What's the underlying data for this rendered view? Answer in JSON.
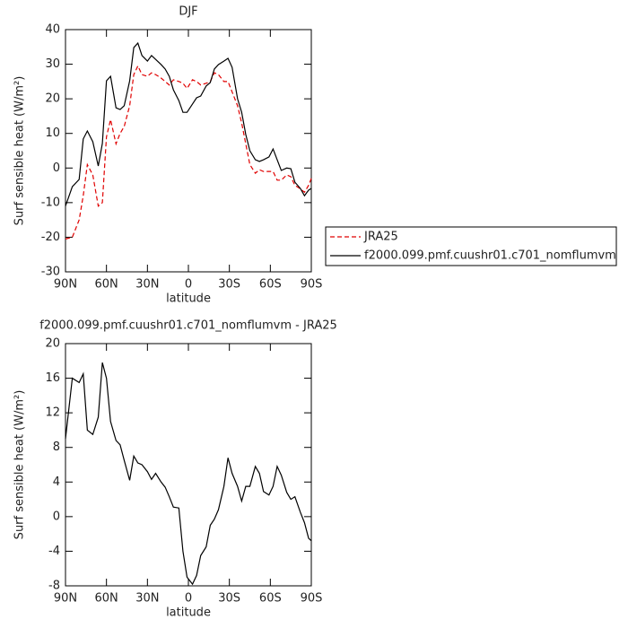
{
  "chart_data": [
    {
      "type": "line",
      "title": "DJF",
      "xlabel": "latitude",
      "ylabel": "Surf sensible heat (W/m²)",
      "x": [
        90,
        85,
        80,
        77,
        74,
        70,
        66,
        63,
        60,
        57,
        53,
        50,
        47,
        43,
        40,
        37,
        34,
        30,
        27,
        24,
        20,
        17,
        14,
        11,
        7,
        4,
        1,
        -3,
        -6,
        -9,
        -13,
        -16,
        -19,
        -22,
        -26,
        -29,
        -32,
        -36,
        -39,
        -42,
        -45,
        -49,
        -52,
        -55,
        -59,
        -62,
        -65,
        -68,
        -72,
        -75,
        -78,
        -82,
        -85,
        -88,
        -90
      ],
      "series": [
        {
          "name": "JRA25",
          "color": "#e00000",
          "dash": true,
          "values": [
            -20.5,
            -20,
            -15,
            -8,
            1,
            -2,
            -11,
            -10,
            9,
            14,
            7,
            10,
            12,
            18,
            27,
            29.5,
            27,
            26.5,
            27.5,
            27,
            26,
            25,
            24,
            25.5,
            25,
            24.5,
            23,
            25.5,
            25,
            24,
            24.5,
            25,
            27.5,
            27,
            25,
            25,
            22,
            18,
            13,
            7,
            1,
            -1.5,
            -0.5,
            -1,
            -1,
            -1,
            -3.5,
            -3.5,
            -2,
            -2.5,
            -5,
            -6,
            -7,
            -5,
            -3
          ]
        },
        {
          "name": "f2000.099.pmf.cuushr01.c701_nomflumvm",
          "color": "#000000",
          "dash": false,
          "values": [
            -11,
            -5.4,
            -3.3,
            8.4,
            10.7,
            7.6,
            0.6,
            7.1,
            25.2,
            26.5,
            17.4,
            16.9,
            18,
            25.2,
            34.8,
            36.1,
            32.5,
            30.9,
            32.5,
            31.4,
            29.9,
            28.6,
            26.5,
            22.6,
            19.5,
            16.1,
            16.1,
            18.5,
            20.3,
            20.8,
            23.7,
            24.7,
            28.6,
            29.9,
            30.9,
            31.7,
            29.1,
            20,
            16.1,
            9.7,
            5,
            2.4,
            1.9,
            2.4,
            3.2,
            5.5,
            2.4,
            -0.7,
            0,
            -0.2,
            -4.1,
            -5.9,
            -8,
            -6.4,
            -5.9
          ]
        }
      ],
      "xlim": [
        90,
        -90
      ],
      "xticks": [
        {
          "value": 90,
          "label": "90N"
        },
        {
          "value": 60,
          "label": "60N"
        },
        {
          "value": 30,
          "label": "30N"
        },
        0,
        {
          "value": -30,
          "label": "30S"
        },
        {
          "value": -60,
          "label": "60S"
        },
        {
          "value": -90,
          "label": "90S"
        }
      ],
      "ylim": [
        -30,
        40
      ],
      "yticks": [
        -30,
        -20,
        -10,
        0,
        10,
        20,
        30,
        40
      ],
      "legend": "right"
    },
    {
      "type": "line",
      "title": "f2000.099.pmf.cuushr01.c701_nomflumvm - JRA25",
      "xlabel": "latitude",
      "ylabel": "Surf sensible heat (W/m²)",
      "x": [
        90,
        85,
        80,
        77,
        74,
        70,
        66,
        63,
        60,
        57,
        53,
        50,
        47,
        43,
        40,
        37,
        34,
        30,
        27,
        24,
        20,
        17,
        14,
        11,
        7,
        4,
        1,
        -3,
        -6,
        -9,
        -13,
        -16,
        -19,
        -22,
        -26,
        -29,
        -32,
        -36,
        -39,
        -42,
        -45,
        -49,
        -52,
        -55,
        -59,
        -62,
        -65,
        -68,
        -72,
        -75,
        -78,
        -82,
        -85,
        -88,
        -90
      ],
      "series": [
        {
          "color": "#000000",
          "dash": false,
          "values": [
            9,
            16,
            15.5,
            16.5,
            10,
            9.5,
            11.5,
            17.8,
            16,
            11,
            8.8,
            8.3,
            6.5,
            4.2,
            7,
            6.2,
            6,
            5.2,
            4.3,
            5,
            4,
            3.4,
            2.3,
            1.1,
            1,
            -4,
            -7,
            -7.8,
            -6.8,
            -4.5,
            -3.5,
            -1,
            -0.3,
            0.8,
            3.5,
            6.8,
            5,
            3.5,
            1.8,
            3.5,
            3.5,
            5.8,
            5,
            2.9,
            2.5,
            3.5,
            5.8,
            4.8,
            2.8,
            2,
            2.3,
            0.5,
            -0.7,
            -2.5,
            -2.8
          ]
        }
      ],
      "xlim": [
        90,
        -90
      ],
      "xticks": [
        {
          "value": 90,
          "label": "90N"
        },
        {
          "value": 60,
          "label": "60N"
        },
        {
          "value": 30,
          "label": "30N"
        },
        0,
        {
          "value": -30,
          "label": "30S"
        },
        {
          "value": -60,
          "label": "60S"
        },
        {
          "value": -90,
          "label": "90S"
        }
      ],
      "ylim": [
        -8,
        20
      ],
      "yticks": [
        -8,
        -4,
        0,
        4,
        8,
        12,
        16,
        20
      ]
    }
  ]
}
